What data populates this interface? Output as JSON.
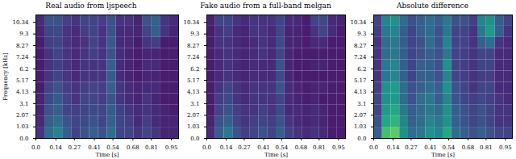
{
  "chart_data": [
    {
      "type": "heatmap",
      "title": "Real audio from ljspeech",
      "xlabel": "Time [s]",
      "ylabel": "Frequency [kHz]",
      "color": "viridis",
      "xlim": [
        0,
        1.0
      ],
      "ylim": [
        0,
        11
      ],
      "xticks": [
        {
          "value": 0,
          "label": "0.0"
        },
        0.14,
        0.27,
        0.41,
        0.54,
        0.68,
        0.81,
        0.95
      ],
      "yticks": [
        {
          "value": 0,
          "label": "0.0"
        },
        1.03,
        2.07,
        3.1,
        4.13,
        5.17,
        6.2,
        7.24,
        8.27,
        9.3,
        10.34
      ],
      "x_bins": [
        0,
        0.0625,
        0.125,
        0.1875,
        0.25,
        0.3125,
        0.375,
        0.4375,
        0.5,
        0.5625,
        0.625,
        0.6875,
        0.75,
        0.8125,
        0.875,
        0.9375,
        1.0
      ],
      "y_bins": [
        0,
        1,
        2,
        3,
        4,
        5,
        6,
        7,
        8,
        9,
        10,
        11
      ],
      "color_range": [
        0,
        1
      ],
      "cells": [
        [
          0.15,
          0.35,
          0.45,
          0.3,
          0.2,
          0.25,
          0.3,
          0.25,
          0.35,
          0.2,
          0.2,
          0.15,
          0.2,
          0.15,
          0.1,
          0.1
        ],
        [
          0.12,
          0.3,
          0.35,
          0.25,
          0.2,
          0.22,
          0.25,
          0.2,
          0.3,
          0.2,
          0.18,
          0.12,
          0.18,
          0.12,
          0.1,
          0.1
        ],
        [
          0.1,
          0.25,
          0.3,
          0.2,
          0.18,
          0.2,
          0.22,
          0.2,
          0.28,
          0.18,
          0.15,
          0.12,
          0.15,
          0.12,
          0.1,
          0.08
        ],
        [
          0.1,
          0.22,
          0.28,
          0.2,
          0.15,
          0.2,
          0.2,
          0.18,
          0.25,
          0.15,
          0.12,
          0.1,
          0.15,
          0.1,
          0.08,
          0.08
        ],
        [
          0.08,
          0.2,
          0.25,
          0.18,
          0.15,
          0.18,
          0.2,
          0.18,
          0.3,
          0.15,
          0.12,
          0.1,
          0.12,
          0.12,
          0.08,
          0.08
        ],
        [
          0.08,
          0.15,
          0.2,
          0.15,
          0.12,
          0.15,
          0.15,
          0.15,
          0.28,
          0.12,
          0.1,
          0.08,
          0.1,
          0.1,
          0.08,
          0.08
        ],
        [
          0.08,
          0.15,
          0.18,
          0.15,
          0.12,
          0.15,
          0.15,
          0.15,
          0.3,
          0.12,
          0.1,
          0.08,
          0.12,
          0.12,
          0.08,
          0.08
        ],
        [
          0.08,
          0.15,
          0.2,
          0.15,
          0.12,
          0.15,
          0.18,
          0.15,
          0.25,
          0.12,
          0.1,
          0.08,
          0.1,
          0.1,
          0.08,
          0.08
        ],
        [
          0.08,
          0.18,
          0.2,
          0.15,
          0.12,
          0.15,
          0.2,
          0.15,
          0.28,
          0.12,
          0.12,
          0.08,
          0.15,
          0.18,
          0.08,
          0.08
        ],
        [
          0.1,
          0.2,
          0.22,
          0.15,
          0.12,
          0.18,
          0.2,
          0.15,
          0.25,
          0.12,
          0.12,
          0.1,
          0.2,
          0.3,
          0.15,
          0.1
        ],
        [
          0.12,
          0.25,
          0.25,
          0.18,
          0.15,
          0.2,
          0.2,
          0.18,
          0.25,
          0.15,
          0.15,
          0.1,
          0.25,
          0.3,
          0.15,
          0.12
        ]
      ]
    },
    {
      "type": "heatmap",
      "title": "Fake audio from a full-band melgan",
      "xlabel": "Time [s]",
      "color": "viridis",
      "xlim": [
        0,
        1.0
      ],
      "ylim": [
        0,
        11
      ],
      "xticks": [
        {
          "value": 0,
          "label": "0.0"
        },
        0.14,
        0.27,
        0.41,
        0.54,
        0.68,
        0.81,
        0.95
      ],
      "yticks": [
        {
          "value": 0,
          "label": "0.0"
        },
        1.03,
        2.07,
        3.1,
        4.13,
        5.17,
        6.2,
        7.24,
        8.27,
        9.3,
        10.34
      ],
      "x_bins": [
        0,
        0.0625,
        0.125,
        0.1875,
        0.25,
        0.3125,
        0.375,
        0.4375,
        0.5,
        0.5625,
        0.625,
        0.6875,
        0.75,
        0.8125,
        0.875,
        0.9375,
        1.0
      ],
      "y_bins": [
        0,
        1,
        2,
        3,
        4,
        5,
        6,
        7,
        8,
        9,
        10,
        11
      ],
      "color_range": [
        0,
        1
      ],
      "cells": [
        [
          0.12,
          0.3,
          0.4,
          0.25,
          0.18,
          0.2,
          0.25,
          0.2,
          0.3,
          0.18,
          0.15,
          0.12,
          0.15,
          0.12,
          0.08,
          0.08
        ],
        [
          0.1,
          0.25,
          0.3,
          0.2,
          0.15,
          0.18,
          0.2,
          0.18,
          0.25,
          0.15,
          0.12,
          0.1,
          0.12,
          0.1,
          0.08,
          0.08
        ],
        [
          0.08,
          0.2,
          0.25,
          0.18,
          0.15,
          0.15,
          0.18,
          0.15,
          0.22,
          0.12,
          0.12,
          0.1,
          0.12,
          0.1,
          0.08,
          0.08
        ],
        [
          0.08,
          0.18,
          0.22,
          0.15,
          0.12,
          0.15,
          0.15,
          0.15,
          0.2,
          0.12,
          0.1,
          0.08,
          0.1,
          0.08,
          0.08,
          0.08
        ],
        [
          0.08,
          0.15,
          0.2,
          0.15,
          0.12,
          0.15,
          0.15,
          0.15,
          0.25,
          0.12,
          0.1,
          0.08,
          0.1,
          0.1,
          0.08,
          0.08
        ],
        [
          0.08,
          0.12,
          0.15,
          0.12,
          0.1,
          0.12,
          0.12,
          0.12,
          0.22,
          0.1,
          0.08,
          0.08,
          0.08,
          0.08,
          0.08,
          0.08
        ],
        [
          0.08,
          0.12,
          0.15,
          0.12,
          0.1,
          0.12,
          0.12,
          0.12,
          0.25,
          0.1,
          0.08,
          0.08,
          0.1,
          0.1,
          0.08,
          0.08
        ],
        [
          0.08,
          0.12,
          0.15,
          0.12,
          0.1,
          0.12,
          0.15,
          0.12,
          0.2,
          0.1,
          0.08,
          0.08,
          0.08,
          0.08,
          0.08,
          0.08
        ],
        [
          0.08,
          0.15,
          0.15,
          0.12,
          0.1,
          0.12,
          0.15,
          0.12,
          0.22,
          0.1,
          0.1,
          0.08,
          0.12,
          0.12,
          0.08,
          0.08
        ],
        [
          0.08,
          0.15,
          0.18,
          0.12,
          0.1,
          0.15,
          0.15,
          0.12,
          0.2,
          0.1,
          0.1,
          0.08,
          0.15,
          0.2,
          0.12,
          0.08
        ],
        [
          0.1,
          0.2,
          0.2,
          0.15,
          0.12,
          0.15,
          0.15,
          0.15,
          0.2,
          0.12,
          0.12,
          0.08,
          0.2,
          0.22,
          0.12,
          0.1
        ]
      ]
    },
    {
      "type": "heatmap",
      "title": "Absolute difference",
      "xlabel": "Time [s]",
      "color": "viridis",
      "xlim": [
        0,
        1.0
      ],
      "ylim": [
        0,
        11
      ],
      "xticks": [
        {
          "value": 0,
          "label": "0.0"
        },
        0.14,
        0.27,
        0.41,
        0.54,
        0.68,
        0.81,
        0.95
      ],
      "yticks": [
        {
          "value": 0,
          "label": "0.0"
        },
        1.03,
        2.07,
        3.1,
        4.13,
        5.17,
        6.2,
        7.24,
        8.27,
        9.3,
        10.34
      ],
      "x_bins": [
        0,
        0.0625,
        0.125,
        0.1875,
        0.25,
        0.3125,
        0.375,
        0.4375,
        0.5,
        0.5625,
        0.625,
        0.6875,
        0.75,
        0.8125,
        0.875,
        0.9375,
        1.0
      ],
      "y_bins": [
        0,
        1,
        2,
        3,
        4,
        5,
        6,
        7,
        8,
        9,
        10,
        11
      ],
      "color_range": [
        0,
        1
      ],
      "cells": [
        [
          0.3,
          0.7,
          0.75,
          0.5,
          0.35,
          0.4,
          0.5,
          0.45,
          0.6,
          0.35,
          0.3,
          0.25,
          0.3,
          0.25,
          0.2,
          0.2
        ],
        [
          0.25,
          0.6,
          0.65,
          0.45,
          0.3,
          0.35,
          0.45,
          0.4,
          0.5,
          0.3,
          0.25,
          0.2,
          0.25,
          0.2,
          0.15,
          0.15
        ],
        [
          0.2,
          0.55,
          0.6,
          0.4,
          0.3,
          0.35,
          0.4,
          0.35,
          0.5,
          0.3,
          0.25,
          0.2,
          0.25,
          0.2,
          0.15,
          0.15
        ],
        [
          0.2,
          0.5,
          0.55,
          0.35,
          0.25,
          0.35,
          0.4,
          0.3,
          0.45,
          0.25,
          0.2,
          0.18,
          0.22,
          0.18,
          0.15,
          0.12
        ],
        [
          0.18,
          0.5,
          0.55,
          0.35,
          0.25,
          0.3,
          0.35,
          0.3,
          0.5,
          0.25,
          0.2,
          0.15,
          0.2,
          0.2,
          0.12,
          0.12
        ],
        [
          0.15,
          0.4,
          0.45,
          0.3,
          0.2,
          0.3,
          0.3,
          0.25,
          0.45,
          0.2,
          0.18,
          0.15,
          0.18,
          0.18,
          0.12,
          0.12
        ],
        [
          0.15,
          0.4,
          0.45,
          0.3,
          0.2,
          0.3,
          0.3,
          0.25,
          0.5,
          0.2,
          0.18,
          0.15,
          0.2,
          0.2,
          0.12,
          0.12
        ],
        [
          0.15,
          0.35,
          0.4,
          0.3,
          0.2,
          0.25,
          0.3,
          0.25,
          0.4,
          0.2,
          0.18,
          0.15,
          0.2,
          0.2,
          0.12,
          0.12
        ],
        [
          0.15,
          0.35,
          0.4,
          0.3,
          0.2,
          0.25,
          0.35,
          0.25,
          0.45,
          0.2,
          0.2,
          0.15,
          0.3,
          0.35,
          0.15,
          0.12
        ],
        [
          0.18,
          0.4,
          0.45,
          0.3,
          0.2,
          0.3,
          0.35,
          0.25,
          0.4,
          0.2,
          0.2,
          0.15,
          0.4,
          0.55,
          0.3,
          0.15
        ],
        [
          0.2,
          0.45,
          0.5,
          0.35,
          0.25,
          0.3,
          0.35,
          0.3,
          0.4,
          0.25,
          0.25,
          0.18,
          0.45,
          0.5,
          0.3,
          0.2
        ]
      ]
    }
  ]
}
